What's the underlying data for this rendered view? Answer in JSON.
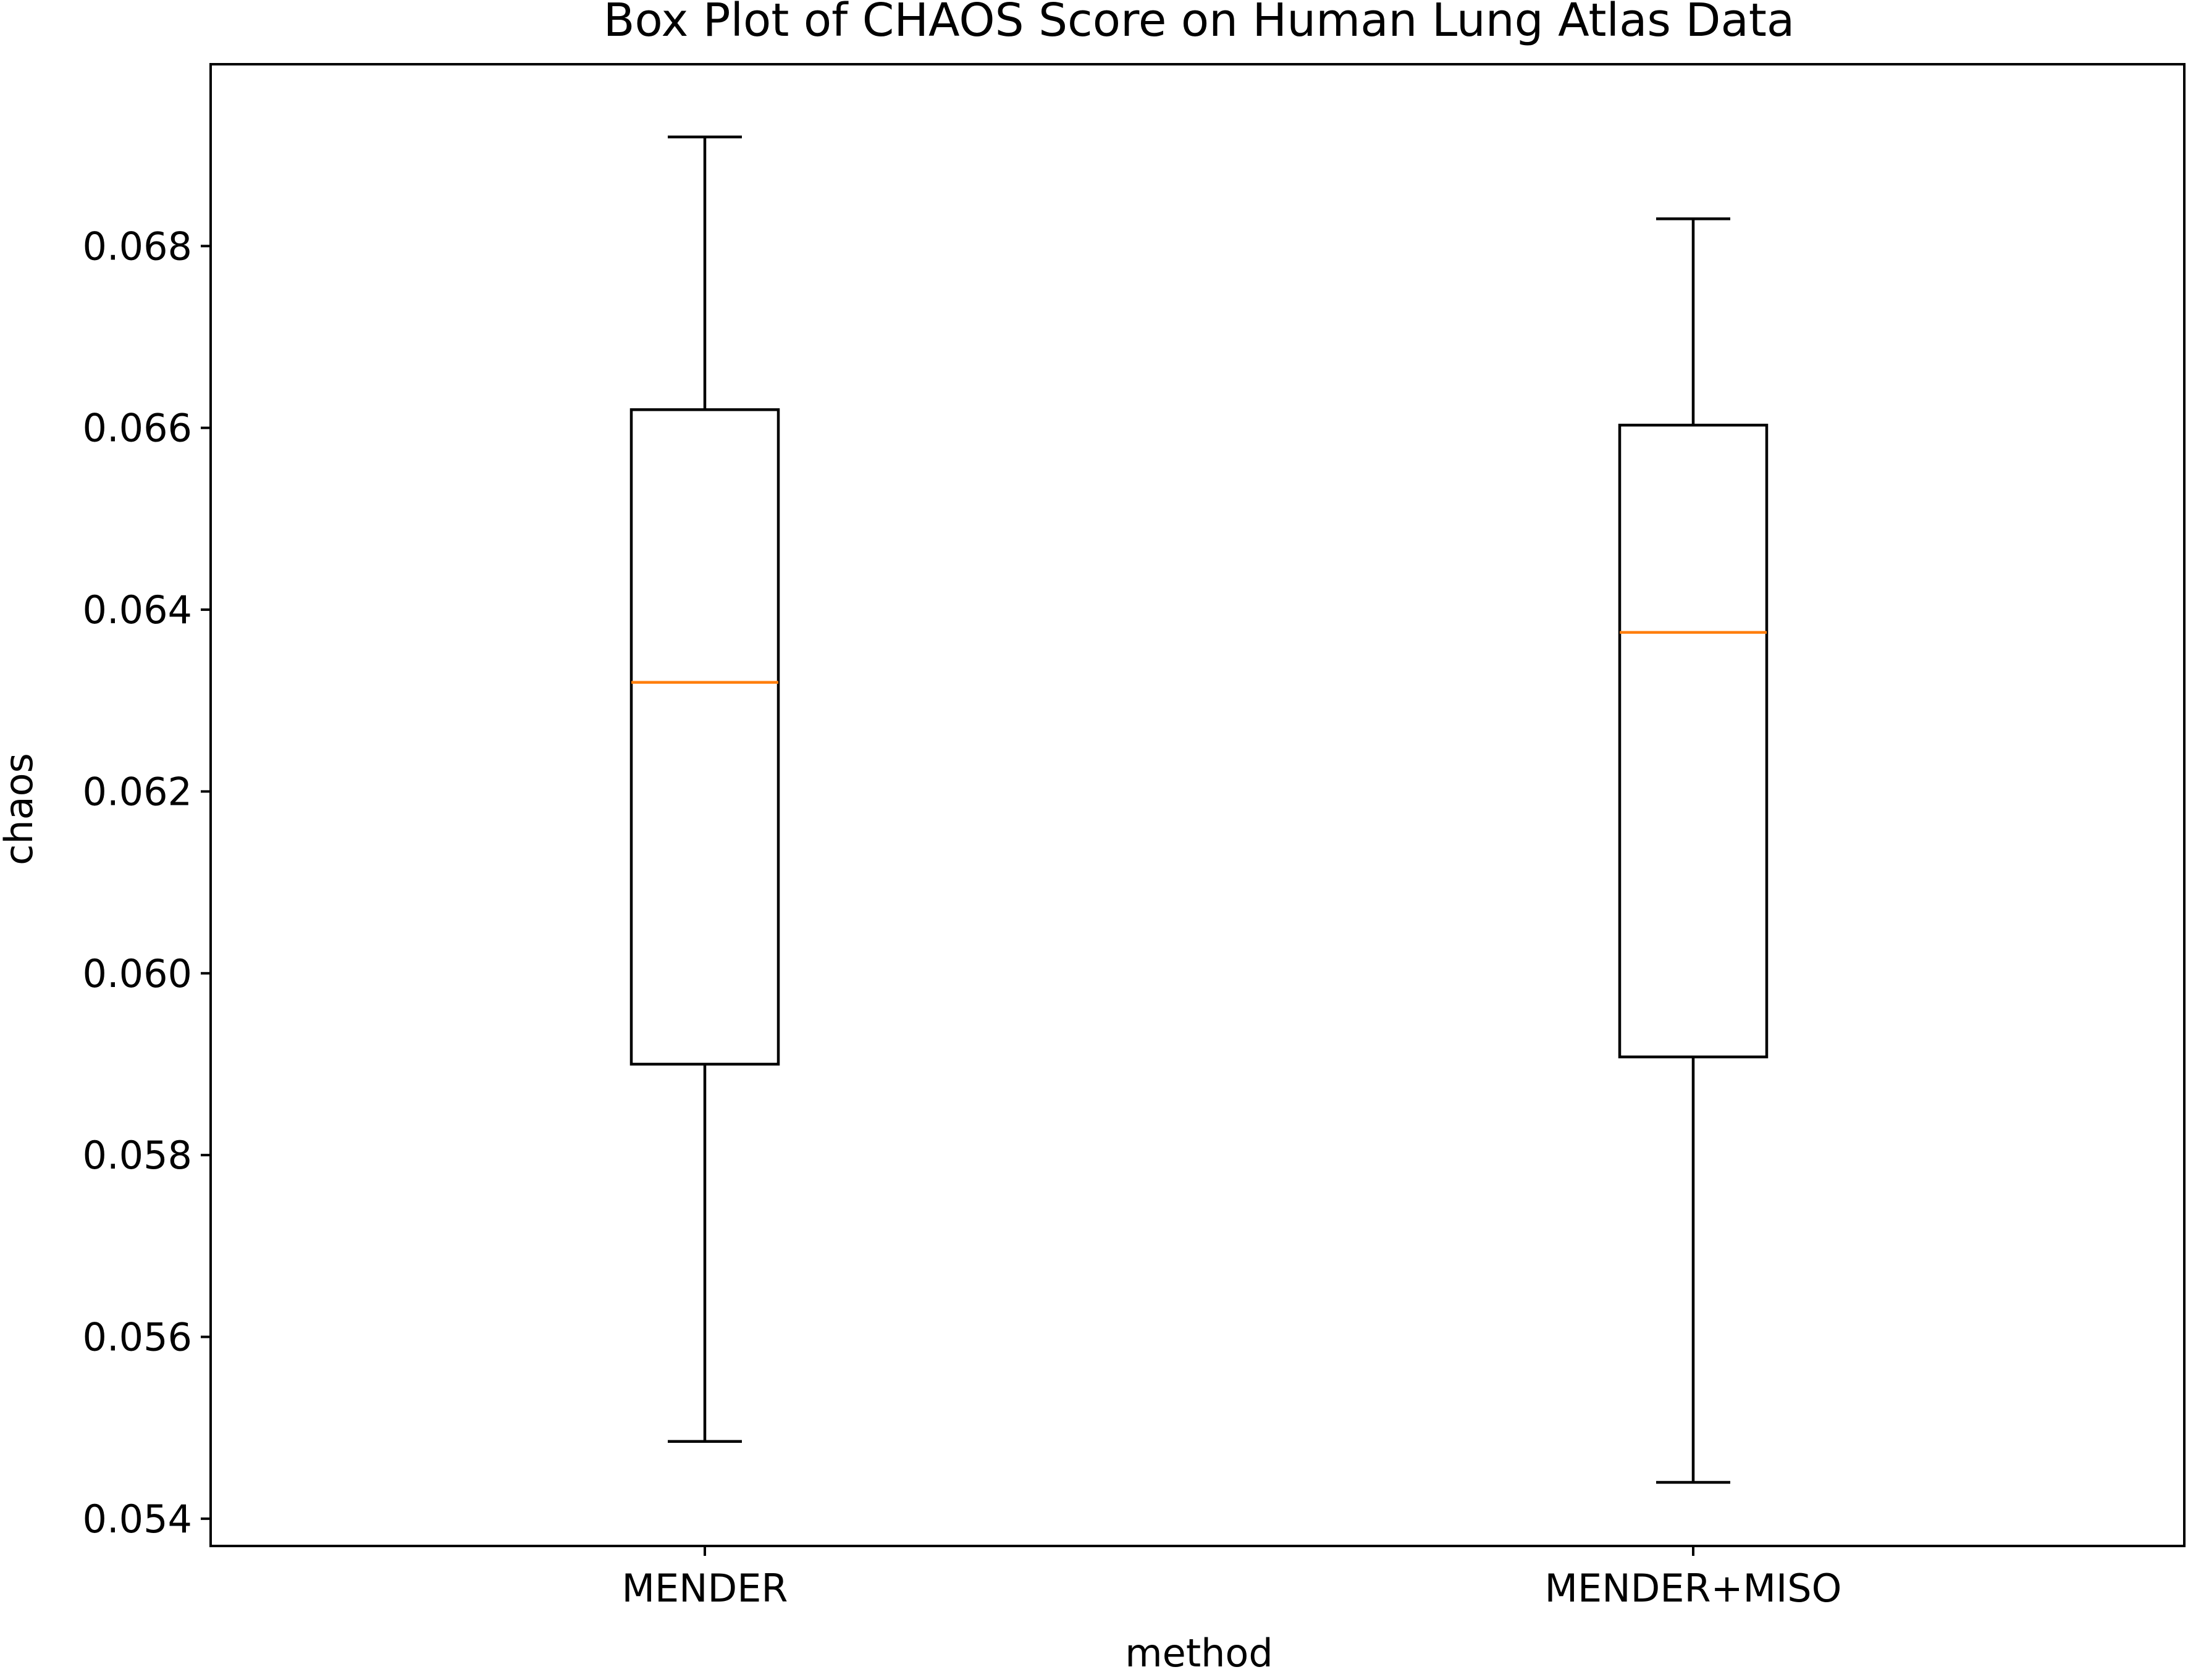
{
  "chart_data": {
    "type": "box",
    "title": "Box Plot of CHAOS Score on Human Lung Atlas Data",
    "xlabel": "method",
    "ylabel": "chaos",
    "ylim": [
      0.0537,
      0.07
    ],
    "yticks": [
      0.054,
      0.056,
      0.058,
      0.06,
      0.062,
      0.064,
      0.066,
      0.068
    ],
    "ytick_labels": [
      "0.054",
      "0.056",
      "0.058",
      "0.060",
      "0.062",
      "0.064",
      "0.066",
      "0.068"
    ],
    "categories": [
      "MENDER",
      "MENDER+MISO"
    ],
    "boxes": [
      {
        "category": "MENDER",
        "whisker_low": 0.05485,
        "q1": 0.059,
        "median": 0.0632,
        "q3": 0.0662,
        "whisker_high": 0.0692
      },
      {
        "category": "MENDER+MISO",
        "whisker_low": 0.0544,
        "q1": 0.05908,
        "median": 0.06375,
        "q3": 0.06603,
        "whisker_high": 0.0683
      }
    ],
    "grid": false,
    "colors": {
      "box": "#000000",
      "median": "#ff7f0e",
      "axes": "#000000"
    }
  }
}
